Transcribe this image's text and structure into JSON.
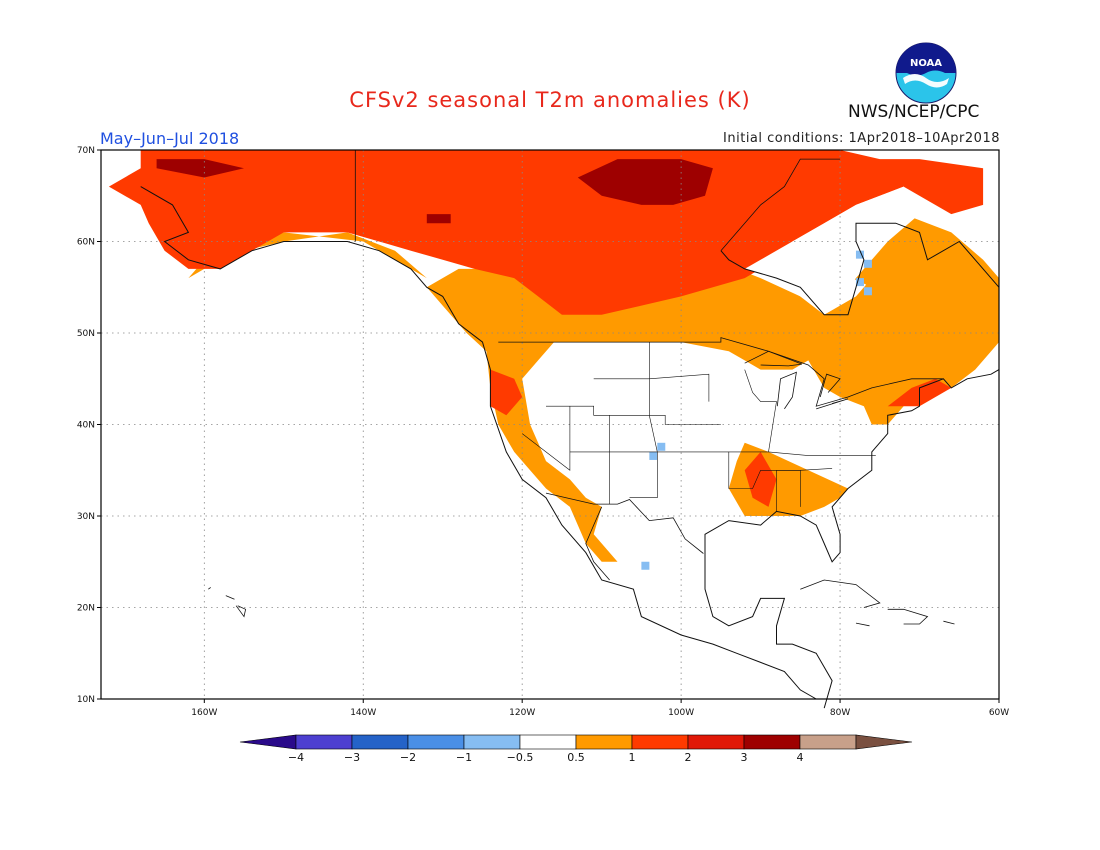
{
  "title": "CFSv2 seasonal T2m anomalies (K)",
  "period": "May–Jun–Jul 2018",
  "initial_conditions": "Initial conditions: 1Apr2018–10Apr2018",
  "agency": "NWS/NCEP/CPC",
  "logo_text": "NOAA",
  "map": {
    "lon_range": [
      -173,
      -60
    ],
    "lat_range": [
      10,
      70
    ],
    "x_ticks": [
      {
        "lon": -160,
        "label": "160W"
      },
      {
        "lon": -140,
        "label": "140W"
      },
      {
        "lon": -120,
        "label": "120W"
      },
      {
        "lon": -100,
        "label": "100W"
      },
      {
        "lon": -80,
        "label": "80W"
      },
      {
        "lon": -60,
        "label": "60W"
      }
    ],
    "y_ticks": [
      {
        "lat": 70,
        "label": "70N"
      },
      {
        "lat": 60,
        "label": "60N"
      },
      {
        "lat": 50,
        "label": "50N"
      },
      {
        "lat": 40,
        "label": "40N"
      },
      {
        "lat": 30,
        "label": "30N"
      },
      {
        "lat": 20,
        "label": "20N"
      },
      {
        "lat": 10,
        "label": "10N"
      }
    ],
    "grid": true
  },
  "colorbar": {
    "colors": [
      "#2a0a8a",
      "#4d3fd0",
      "#2563c8",
      "#4a8fe6",
      "#86bdf2",
      "#ffffff",
      "#ff9a00",
      "#ff3a00",
      "#e01808",
      "#9e0000",
      "#c8a08a",
      "#7a5040"
    ],
    "labels": [
      "−4",
      "−3",
      "−2",
      "−1",
      "−0.5",
      "0.5",
      "1",
      "2",
      "3",
      "4"
    ]
  },
  "colors": {
    "anom_05_1": "#ff9a00",
    "anom_1_2": "#ff3a00",
    "anom_2_3": "#9e0000",
    "anom_neg_05_1": "#86bdf2",
    "title": "#e8281c",
    "period": "#2050e0"
  }
}
